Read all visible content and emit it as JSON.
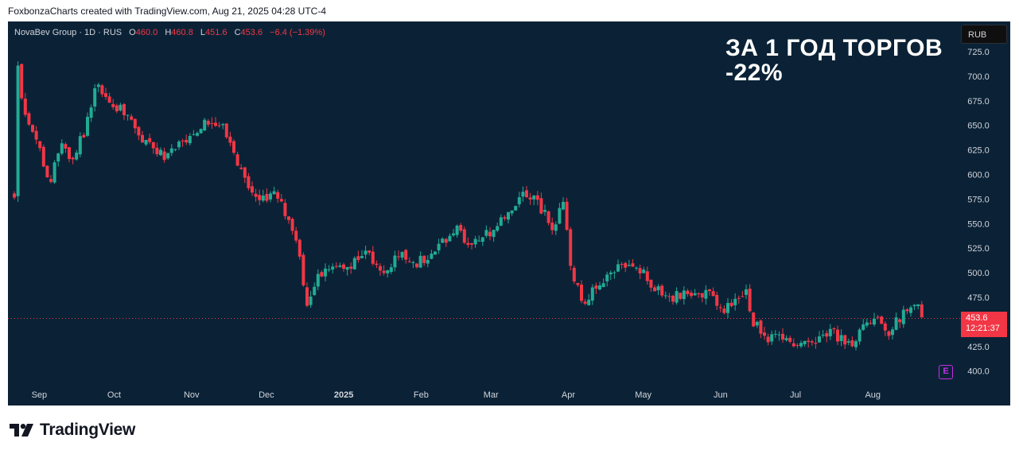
{
  "credit": "FoxbonzaCharts created with TradingView.com, Aug 21, 2025 04:28 UTC-4",
  "legend": {
    "symbol": "NovaBev Group · 1D · RUS",
    "open_label": "O",
    "open": "460.0",
    "high_label": "H",
    "high": "460.8",
    "low_label": "L",
    "low": "451.6",
    "close_label": "C",
    "close": "453.6",
    "change": "−6.4 (−1.39%)"
  },
  "headline": {
    "line1": "ЗА 1 ГОД ТОРГОВ",
    "line2": "-22%"
  },
  "currency": "RUB",
  "price_badge": {
    "price": "453.6",
    "countdown": "12:21:37"
  },
  "earnings_icon": "E",
  "brand": "TradingView",
  "colors": {
    "up": "#22ab94",
    "down": "#f23645",
    "background": "#0b2236",
    "earnings": "#c22fe6"
  },
  "chart_data": {
    "type": "candlestick",
    "ylim": [
      390,
      738
    ],
    "y_ticks": [
      "725.0",
      "700.0",
      "675.0",
      "650.0",
      "625.0",
      "600.0",
      "575.0",
      "550.0",
      "525.0",
      "500.0",
      "475.0",
      "450.0",
      "425.0",
      "400.0"
    ],
    "x_ticks": [
      "Sep",
      "Oct",
      "Nov",
      "Dec",
      "2025",
      "Feb",
      "Mar",
      "Apr",
      "May",
      "Jun",
      "Jul",
      "Aug"
    ],
    "last_price": 453.6,
    "close_path": [
      {
        "x": "2024-08-22",
        "y": 580
      },
      {
        "x": "2024-08-23",
        "y": 715
      },
      {
        "x": "2024-08-27",
        "y": 650
      },
      {
        "x": "2024-09-02",
        "y": 620
      },
      {
        "x": "2024-09-05",
        "y": 590
      },
      {
        "x": "2024-09-09",
        "y": 630
      },
      {
        "x": "2024-09-14",
        "y": 615
      },
      {
        "x": "2024-09-20",
        "y": 650
      },
      {
        "x": "2024-09-24",
        "y": 690
      },
      {
        "x": "2024-09-30",
        "y": 675
      },
      {
        "x": "2024-10-07",
        "y": 655
      },
      {
        "x": "2024-10-14",
        "y": 630
      },
      {
        "x": "2024-10-22",
        "y": 615
      },
      {
        "x": "2024-10-29",
        "y": 635
      },
      {
        "x": "2024-11-05",
        "y": 650
      },
      {
        "x": "2024-11-12",
        "y": 655
      },
      {
        "x": "2024-11-18",
        "y": 620
      },
      {
        "x": "2024-11-22",
        "y": 595
      },
      {
        "x": "2024-11-27",
        "y": 575
      },
      {
        "x": "2024-12-04",
        "y": 580
      },
      {
        "x": "2024-12-10",
        "y": 555
      },
      {
        "x": "2024-12-14",
        "y": 520
      },
      {
        "x": "2024-12-17",
        "y": 470
      },
      {
        "x": "2024-12-23",
        "y": 500
      },
      {
        "x": "2025-01-02",
        "y": 505
      },
      {
        "x": "2025-01-10",
        "y": 520
      },
      {
        "x": "2025-01-17",
        "y": 500
      },
      {
        "x": "2025-01-24",
        "y": 520
      },
      {
        "x": "2025-01-31",
        "y": 510
      },
      {
        "x": "2025-02-07",
        "y": 525
      },
      {
        "x": "2025-02-14",
        "y": 545
      },
      {
        "x": "2025-02-21",
        "y": 530
      },
      {
        "x": "2025-02-28",
        "y": 540
      },
      {
        "x": "2025-03-07",
        "y": 555
      },
      {
        "x": "2025-03-14",
        "y": 585
      },
      {
        "x": "2025-03-20",
        "y": 570
      },
      {
        "x": "2025-03-26",
        "y": 545
      },
      {
        "x": "2025-03-30",
        "y": 575
      },
      {
        "x": "2025-04-02",
        "y": 505
      },
      {
        "x": "2025-04-07",
        "y": 470
      },
      {
        "x": "2025-04-14",
        "y": 490
      },
      {
        "x": "2025-04-22",
        "y": 505
      },
      {
        "x": "2025-04-29",
        "y": 505
      },
      {
        "x": "2025-05-06",
        "y": 485
      },
      {
        "x": "2025-05-13",
        "y": 475
      },
      {
        "x": "2025-05-20",
        "y": 480
      },
      {
        "x": "2025-05-27",
        "y": 480
      },
      {
        "x": "2025-06-02",
        "y": 460
      },
      {
        "x": "2025-06-07",
        "y": 470
      },
      {
        "x": "2025-06-11",
        "y": 480
      },
      {
        "x": "2025-06-14",
        "y": 448
      },
      {
        "x": "2025-06-20",
        "y": 435
      },
      {
        "x": "2025-06-27",
        "y": 430
      },
      {
        "x": "2025-07-04",
        "y": 425
      },
      {
        "x": "2025-07-10",
        "y": 428
      },
      {
        "x": "2025-07-14",
        "y": 440
      },
      {
        "x": "2025-07-18",
        "y": 435
      },
      {
        "x": "2025-07-24",
        "y": 425
      },
      {
        "x": "2025-07-28",
        "y": 450
      },
      {
        "x": "2025-08-02",
        "y": 455
      },
      {
        "x": "2025-08-07",
        "y": 440
      },
      {
        "x": "2025-08-12",
        "y": 455
      },
      {
        "x": "2025-08-16",
        "y": 465
      },
      {
        "x": "2025-08-20",
        "y": 462
      },
      {
        "x": "2025-08-21",
        "y": 453.6
      }
    ]
  }
}
